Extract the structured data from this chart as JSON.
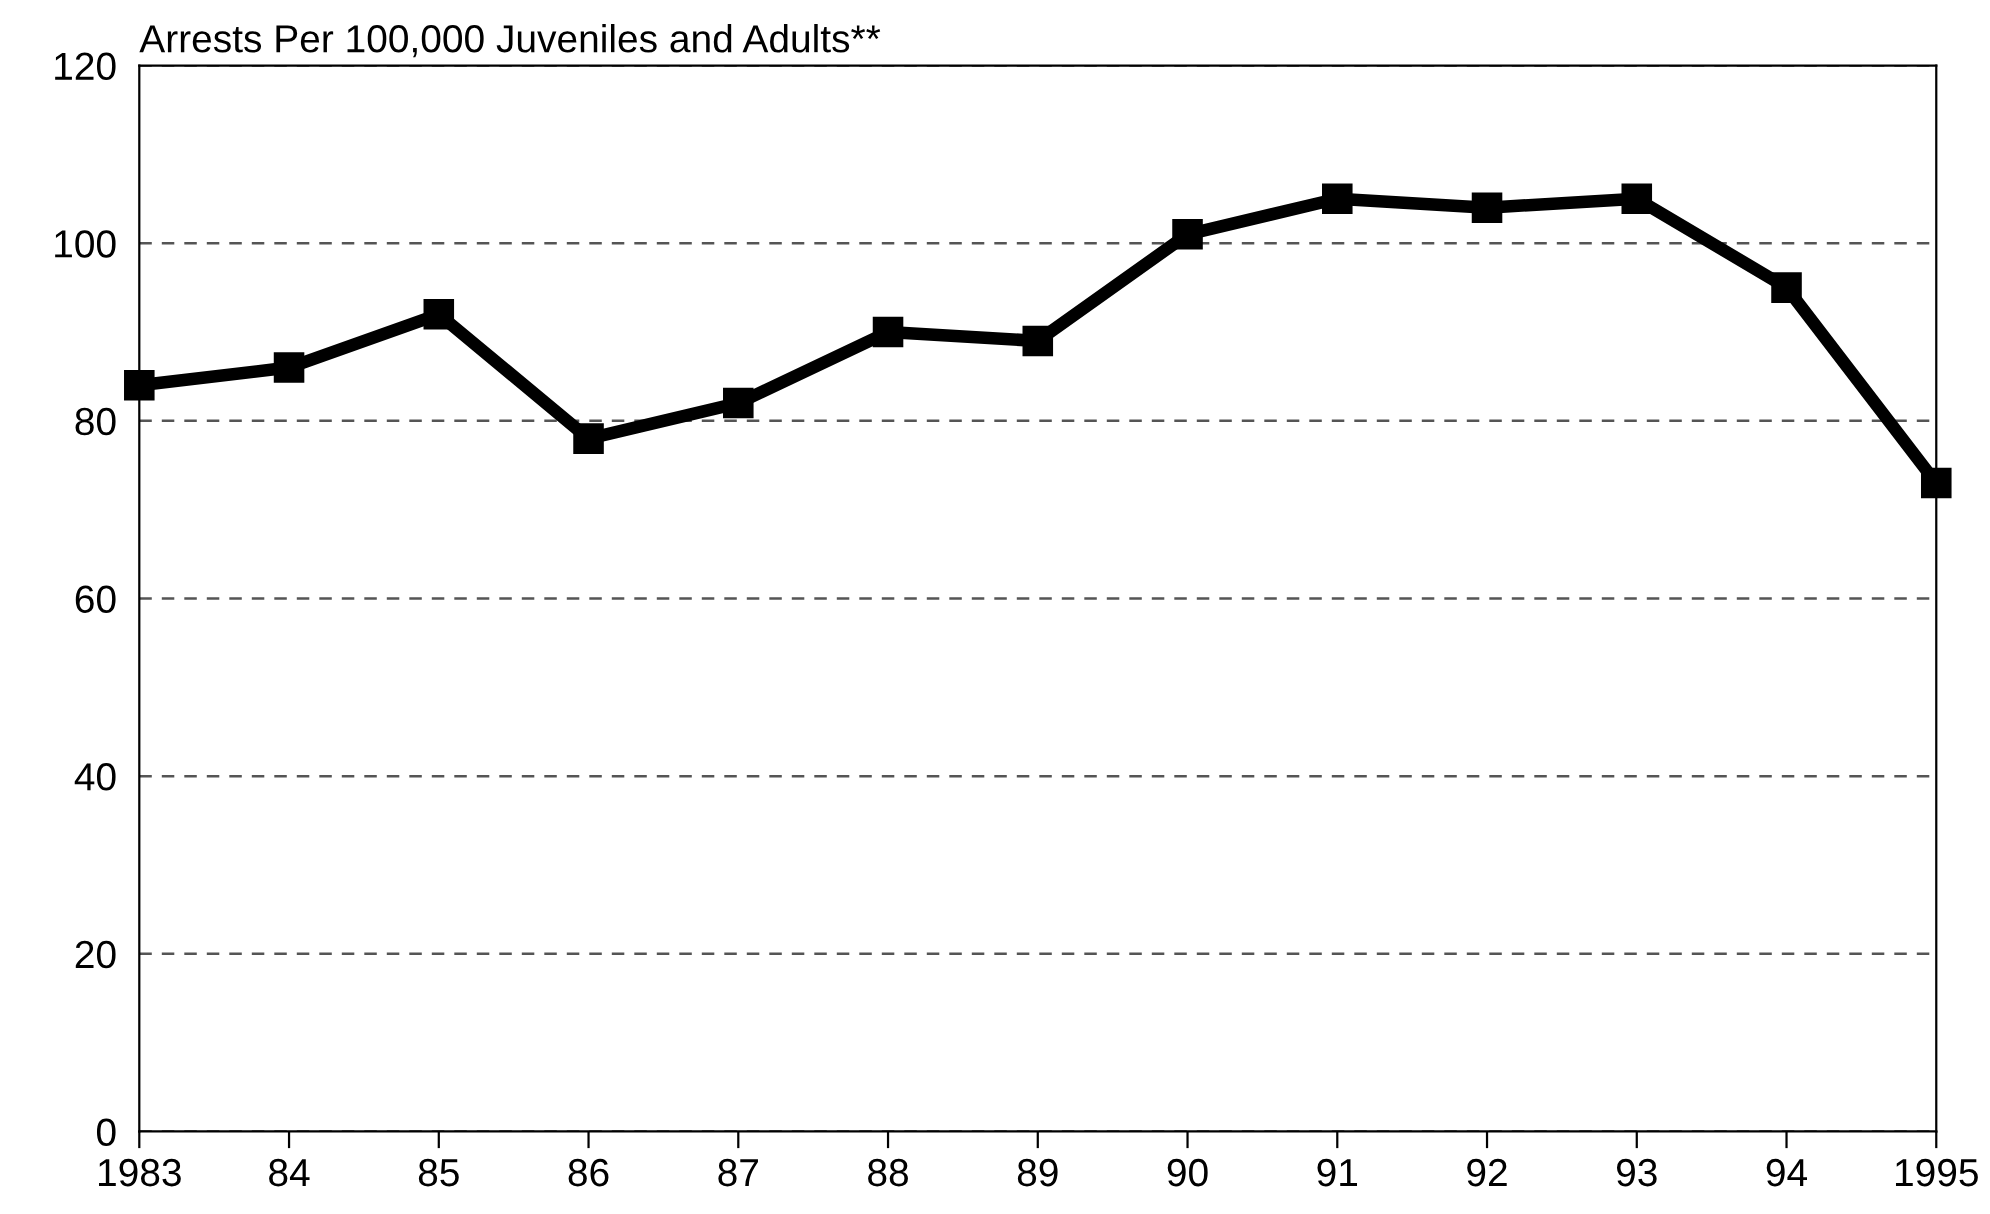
{
  "chart_data": {
    "type": "line",
    "ylabel": "Arrests Per 100,000 Juveniles and Adults**",
    "categories": [
      "1983",
      "84",
      "85",
      "86",
      "87",
      "88",
      "89",
      "90",
      "91",
      "92",
      "93",
      "94",
      "1995"
    ],
    "series": [
      {
        "color": "#000000",
        "values": [
          84,
          86,
          92,
          78,
          82,
          90,
          89,
          101,
          105,
          104,
          105,
          95,
          73
        ]
      }
    ],
    "ylim": [
      0,
      120
    ],
    "yticks": [
      0,
      20,
      40,
      60,
      80,
      100,
      120
    ],
    "grid": "y",
    "marker": "square",
    "line_style": "solid",
    "legend": false
  }
}
